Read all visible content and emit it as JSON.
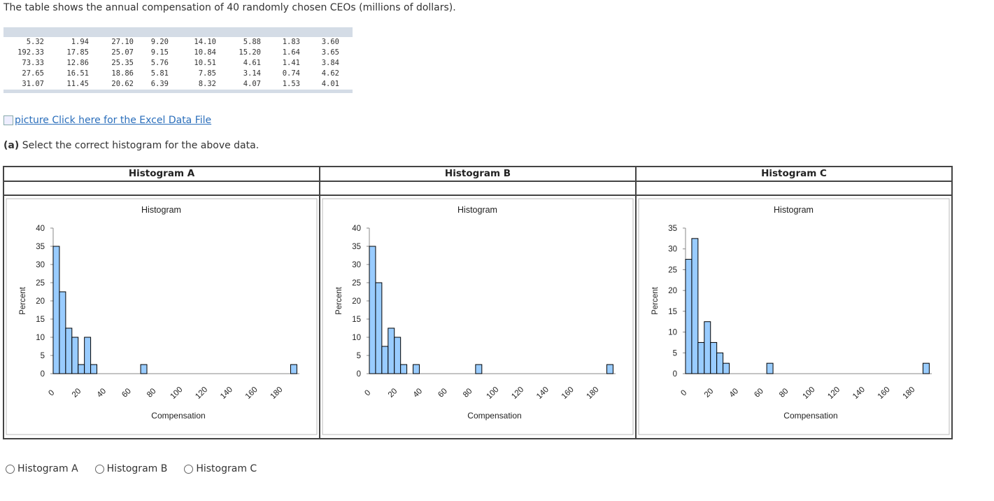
{
  "intro_text": "The table shows the annual compensation of 40 randomly chosen CEOs (millions of dollars).",
  "data_rows": [
    [
      "5.32",
      "1.94",
      "27.10",
      "9.20",
      "14.10",
      "5.88",
      "1.83",
      "3.60"
    ],
    [
      "192.33",
      "17.85",
      "25.07",
      "9.15",
      "10.84",
      "15.20",
      "1.64",
      "3.65"
    ],
    [
      "73.33",
      "12.86",
      "25.35",
      "5.76",
      "10.51",
      "4.61",
      "1.41",
      "3.84"
    ],
    [
      "27.65",
      "16.51",
      "18.86",
      "5.81",
      "7.85",
      "3.14",
      "0.74",
      "4.62"
    ],
    [
      "31.07",
      "11.45",
      "20.62",
      "6.39",
      "8.32",
      "4.07",
      "1.53",
      "4.01"
    ]
  ],
  "link_alt": "picture",
  "link_text": "Click here for the Excel Data File",
  "question_prefix": "(a)",
  "question_text": "Select the correct histogram for the above data.",
  "colors": {
    "bar_fill": "#99ccff",
    "bar_stroke": "#000000",
    "link": "#2a6ebb"
  },
  "chart_data": [
    {
      "type": "bar",
      "header": "Histogram A",
      "title": "Histogram",
      "xlabel": "Compensation",
      "ylabel": "Percent",
      "ylim": [
        0,
        40
      ],
      "yticks": [
        0,
        5,
        10,
        15,
        20,
        25,
        30,
        35,
        40
      ],
      "xticks": [
        0,
        20,
        40,
        60,
        80,
        100,
        120,
        140,
        160,
        180
      ],
      "bin_width": 5,
      "bins": [
        {
          "x": 0,
          "value": 35
        },
        {
          "x": 5,
          "value": 22.5
        },
        {
          "x": 10,
          "value": 12.5
        },
        {
          "x": 15,
          "value": 10
        },
        {
          "x": 20,
          "value": 2.5
        },
        {
          "x": 25,
          "value": 10
        },
        {
          "x": 30,
          "value": 2.5
        },
        {
          "x": 70,
          "value": 2.5
        },
        {
          "x": 190,
          "value": 2.5
        }
      ]
    },
    {
      "type": "bar",
      "header": "Histogram B",
      "title": "Histogram",
      "xlabel": "Compensation",
      "ylabel": "Percent",
      "ylim": [
        0,
        40
      ],
      "yticks": [
        0,
        5,
        10,
        15,
        20,
        25,
        30,
        35,
        40
      ],
      "xticks": [
        0,
        20,
        40,
        60,
        80,
        100,
        120,
        140,
        160,
        180
      ],
      "bin_width": 5,
      "bins": [
        {
          "x": 0,
          "value": 35
        },
        {
          "x": 5,
          "value": 25
        },
        {
          "x": 10,
          "value": 7.5
        },
        {
          "x": 15,
          "value": 12.5
        },
        {
          "x": 20,
          "value": 10
        },
        {
          "x": 25,
          "value": 2.5
        },
        {
          "x": 35,
          "value": 2.5
        },
        {
          "x": 85,
          "value": 2.5
        },
        {
          "x": 190,
          "value": 2.5
        }
      ]
    },
    {
      "type": "bar",
      "header": "Histogram C",
      "title": "Histogram",
      "xlabel": "Compensation",
      "ylabel": "Percent",
      "ylim": [
        0,
        35
      ],
      "yticks": [
        0,
        5,
        10,
        15,
        20,
        25,
        30,
        35
      ],
      "xticks": [
        0,
        20,
        40,
        60,
        80,
        100,
        120,
        140,
        160,
        180
      ],
      "bin_width": 5,
      "bins": [
        {
          "x": 0,
          "value": 27.5
        },
        {
          "x": 5,
          "value": 32.5
        },
        {
          "x": 10,
          "value": 7.5
        },
        {
          "x": 15,
          "value": 12.5
        },
        {
          "x": 20,
          "value": 7.5
        },
        {
          "x": 25,
          "value": 5
        },
        {
          "x": 30,
          "value": 2.5
        },
        {
          "x": 65,
          "value": 2.5
        },
        {
          "x": 190,
          "value": 2.5
        }
      ]
    }
  ],
  "choices": [
    "Histogram A",
    "Histogram B",
    "Histogram C"
  ]
}
